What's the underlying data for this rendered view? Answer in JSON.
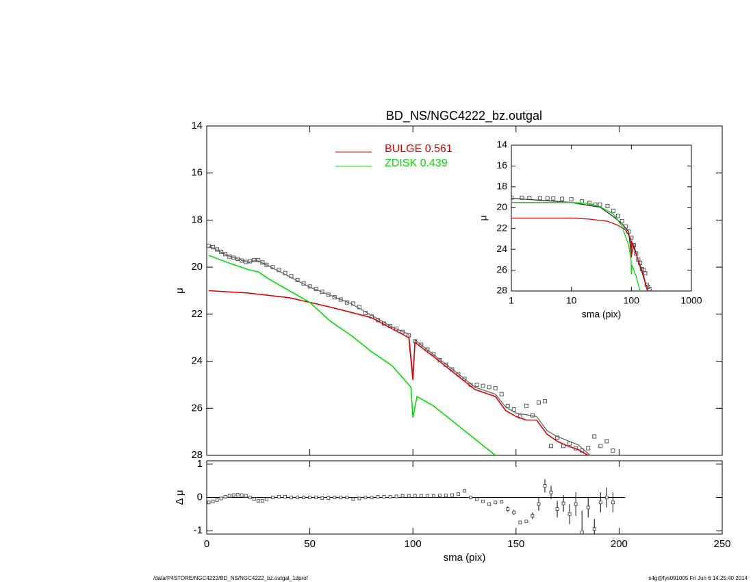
{
  "chart_data": [
    {
      "type": "line",
      "title": "BD_NS/NGC4222_bz.outgal",
      "ylabel": "μ",
      "y_inverted": true,
      "xlim": [
        0,
        250
      ],
      "xticks": [
        0,
        50,
        100,
        150,
        200,
        250
      ],
      "ylim": [
        14,
        28
      ],
      "yticks": [
        14,
        16,
        18,
        20,
        22,
        24,
        26,
        28
      ],
      "series": [
        {
          "style": "points",
          "color": "#555555",
          "x": [
            1,
            3,
            5,
            7,
            9,
            11,
            13,
            15,
            17,
            19,
            21,
            23,
            25,
            27,
            29,
            32,
            35,
            38,
            41,
            44,
            47,
            50,
            53,
            56,
            59,
            62,
            65,
            68,
            71,
            74,
            77,
            80,
            83,
            86,
            89,
            92,
            95,
            98,
            101,
            104,
            107,
            110,
            113,
            116,
            119,
            122,
            125,
            128,
            131,
            134,
            137,
            140,
            143,
            146,
            149,
            152,
            155,
            158,
            161,
            164,
            167,
            170,
            173,
            176,
            179,
            182,
            185,
            188,
            191,
            194,
            197
          ],
          "values": [
            19.1,
            19.15,
            19.25,
            19.35,
            19.45,
            19.55,
            19.6,
            19.65,
            19.72,
            19.78,
            19.75,
            19.7,
            19.7,
            19.8,
            19.9,
            20.0,
            20.12,
            20.25,
            20.38,
            20.55,
            20.7,
            20.82,
            20.93,
            21.05,
            21.17,
            21.28,
            21.38,
            21.5,
            21.55,
            21.7,
            21.95,
            22.1,
            22.25,
            22.4,
            22.5,
            22.62,
            22.75,
            22.9,
            23.15,
            23.3,
            23.5,
            23.7,
            23.95,
            24.15,
            24.35,
            24.55,
            24.75,
            25.0,
            25.0,
            25.05,
            25.1,
            25.15,
            25.4,
            25.9,
            26.05,
            26.35,
            25.9,
            26.3,
            25.75,
            25.7,
            27.6,
            27.25,
            27.6,
            27.5,
            27.7,
            27.8,
            27.7,
            27.2,
            27.6,
            27.4,
            27.8
          ]
        },
        {
          "style": "line",
          "color": "#666666",
          "x": [
            1,
            10,
            20,
            24,
            30,
            50,
            70,
            90,
            98,
            100,
            101,
            120,
            130,
            140,
            145,
            150,
            160,
            165,
            170,
            180,
            186
          ],
          "values": [
            19.1,
            19.5,
            19.8,
            19.7,
            19.95,
            20.85,
            21.55,
            22.55,
            22.85,
            24.6,
            23.1,
            24.4,
            25.1,
            25.4,
            25.95,
            26.2,
            26.35,
            26.95,
            27.2,
            27.55,
            28.0
          ]
        },
        {
          "style": "line",
          "name": "BULGE  0.561",
          "color": "#dd0000",
          "x": [
            1,
            20,
            40,
            60,
            80,
            98,
            100,
            101,
            110,
            120,
            130,
            140,
            145,
            150,
            155,
            160,
            165,
            170,
            175,
            180,
            185
          ],
          "values": [
            21.0,
            21.1,
            21.3,
            21.7,
            22.15,
            23.0,
            24.8,
            23.2,
            23.8,
            24.5,
            25.2,
            25.5,
            26.1,
            26.35,
            26.5,
            26.5,
            27.1,
            27.4,
            27.6,
            27.75,
            28.0
          ]
        },
        {
          "style": "line",
          "name": "ZDISK  0.439",
          "color": "#00dd00",
          "x": [
            1,
            10,
            20,
            25,
            30,
            40,
            50,
            60,
            70,
            80,
            90,
            99,
            100,
            102,
            110,
            120,
            130,
            140
          ],
          "values": [
            19.5,
            19.8,
            20.1,
            20.2,
            20.5,
            21.0,
            21.5,
            22.3,
            22.9,
            23.6,
            24.2,
            25.1,
            26.4,
            25.5,
            25.9,
            26.6,
            27.3,
            28.0
          ]
        }
      ]
    },
    {
      "type": "errorbar",
      "xlabel": "sma (pix)",
      "ylabel": "Δ μ",
      "xlim": [
        0,
        250
      ],
      "xticks": [
        0,
        50,
        100,
        150,
        200,
        250
      ],
      "ylim": [
        -1.1,
        1.1
      ],
      "yticks": [
        -1,
        0,
        1
      ],
      "color": "#555555",
      "x": [
        1,
        3,
        5,
        7,
        9,
        11,
        13,
        15,
        17,
        19,
        21,
        23,
        25,
        27,
        29,
        32,
        35,
        38,
        41,
        44,
        47,
        50,
        53,
        56,
        59,
        62,
        65,
        68,
        71,
        74,
        77,
        80,
        83,
        86,
        89,
        92,
        95,
        98,
        101,
        104,
        107,
        110,
        113,
        116,
        119,
        122,
        125,
        128,
        131,
        134,
        137,
        140,
        143,
        146,
        149,
        152,
        155,
        158,
        161,
        164,
        167,
        170,
        173,
        176,
        179,
        182,
        185,
        188,
        191,
        194,
        197
      ],
      "values": [
        -0.15,
        -0.12,
        -0.08,
        -0.03,
        0.02,
        0.05,
        0.07,
        0.08,
        0.07,
        0.05,
        0.0,
        -0.05,
        -0.1,
        -0.1,
        -0.05,
        0.0,
        0.02,
        0.02,
        0.0,
        0.0,
        0.0,
        0.0,
        0.0,
        -0.02,
        -0.02,
        0.0,
        0.0,
        0.0,
        -0.05,
        -0.03,
        0.0,
        0.0,
        0.02,
        0.02,
        0.02,
        0.03,
        0.05,
        0.05,
        0.05,
        0.05,
        0.05,
        0.05,
        0.06,
        0.06,
        0.07,
        0.1,
        0.2,
        0.0,
        -0.05,
        -0.12,
        -0.2,
        -0.15,
        -0.13,
        -0.35,
        -0.45,
        -0.75,
        -0.72,
        -0.55,
        -0.2,
        0.35,
        0.15,
        -0.35,
        -0.18,
        -0.5,
        -0.2,
        -1.05,
        -0.3,
        -0.95,
        -0.15,
        0.0,
        -0.15
      ],
      "errors": [
        0.02,
        0.02,
        0.02,
        0.02,
        0.02,
        0.02,
        0.02,
        0.02,
        0.02,
        0.02,
        0.02,
        0.02,
        0.02,
        0.02,
        0.02,
        0.02,
        0.02,
        0.02,
        0.02,
        0.02,
        0.02,
        0.02,
        0.02,
        0.02,
        0.02,
        0.02,
        0.02,
        0.02,
        0.02,
        0.02,
        0.02,
        0.02,
        0.02,
        0.02,
        0.02,
        0.02,
        0.02,
        0.02,
        0.05,
        0.05,
        0.05,
        0.05,
        0.05,
        0.05,
        0.05,
        0.05,
        0.05,
        0.05,
        0.05,
        0.05,
        0.05,
        0.05,
        0.05,
        0.08,
        0.08,
        0.05,
        0.05,
        0.1,
        0.2,
        0.2,
        0.2,
        0.25,
        0.25,
        0.3,
        0.35,
        0.65,
        0.3,
        0.3,
        0.3,
        0.3,
        0.3
      ]
    },
    {
      "type": "line",
      "xlabel": "sma (pix)",
      "ylabel": "μ",
      "log_x": true,
      "y_inverted": true,
      "xlim": [
        1,
        1000
      ],
      "xticks": [
        1,
        10,
        100,
        1000
      ],
      "ylim": [
        14,
        28
      ],
      "yticks": [
        14,
        16,
        18,
        20,
        22,
        24,
        26,
        28
      ],
      "series": [
        {
          "style": "points",
          "color": "#555555",
          "x": [
            1,
            1.5,
            2,
            3,
            4,
            5,
            7,
            10,
            15,
            20,
            25,
            30,
            40,
            50,
            60,
            70,
            80,
            90,
            100,
            110,
            120,
            130,
            140,
            150,
            160,
            170,
            180,
            190,
            200
          ],
          "values": [
            19.05,
            19.05,
            19.06,
            19.08,
            19.1,
            19.12,
            19.15,
            19.2,
            19.4,
            19.55,
            19.7,
            19.7,
            19.85,
            20.3,
            20.8,
            21.3,
            21.8,
            22.3,
            22.9,
            23.6,
            24.4,
            25.0,
            25.3,
            25.9,
            26.0,
            26.3,
            27.4,
            27.6,
            27.8
          ]
        },
        {
          "style": "line",
          "color": "#333333",
          "x": [
            1,
            10,
            20,
            30,
            50,
            70,
            90,
            100,
            110,
            130,
            150,
            170,
            186
          ],
          "values": [
            19.1,
            19.5,
            19.8,
            19.95,
            20.85,
            21.55,
            22.3,
            24.6,
            23.6,
            25.1,
            26.2,
            27.2,
            28.0
          ]
        },
        {
          "style": "line",
          "color": "#dd0000",
          "x": [
            1,
            10,
            20,
            40,
            60,
            80,
            98,
            100,
            101,
            120,
            140,
            160,
            185
          ],
          "values": [
            21.0,
            21.0,
            21.1,
            21.3,
            21.7,
            22.15,
            23.0,
            24.8,
            23.2,
            24.5,
            25.5,
            26.5,
            28.0
          ]
        },
        {
          "style": "line",
          "color": "#00dd00",
          "x": [
            1,
            10,
            20,
            30,
            50,
            70,
            90,
            99,
            100,
            102,
            120,
            140
          ],
          "values": [
            19.5,
            19.5,
            19.6,
            19.9,
            20.6,
            21.8,
            23.6,
            25.1,
            26.4,
            25.5,
            26.6,
            28.0
          ]
        }
      ]
    }
  ],
  "footer": {
    "left": "/data/P4STORE/NGC4222/BD_NS/NGC4222_bz.outgal_1dprof",
    "right": "s4g@fys091005  Fri Jun  6 14:25:40 2014"
  }
}
